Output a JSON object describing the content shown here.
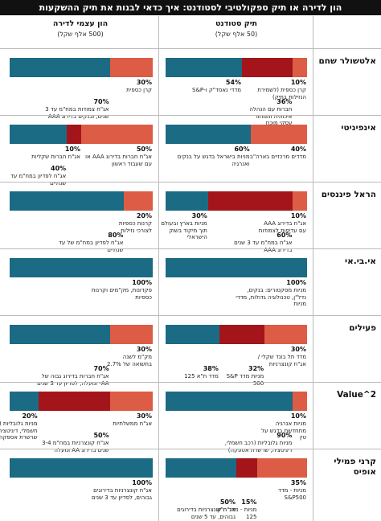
{
  "title": "הון לדירה או תיק ספקולטיבי לסטודנט: איך כדאי לבנות את תיק ההשקעות",
  "columns": {
    "student": {
      "title": "תיק סטודנט",
      "subtitle": "(50 אלף שקל)"
    },
    "home": {
      "title": "הון עצמי לדירה",
      "subtitle": "(500 אלף שקל)"
    }
  },
  "rows": [
    {
      "name": "אלטשולר שחם",
      "student": [
        {
          "value": 10,
          "value_label": "10%",
          "color": "#dd5c45",
          "text": "קרן כספית (לשמירת הנזילות בתיק)"
        },
        {
          "value": 36,
          "value_label": "36%",
          "color": "#a3151a",
          "text": "חברות עם הנהלה איכותית ותמחור עסקי מוכח"
        },
        {
          "value": 54,
          "value_label": "54%",
          "color": "#1c6b84",
          "text": "מדדי נאסד\"ק ו-S&P"
        }
      ],
      "home": [
        {
          "value": 30,
          "value_label": "30%",
          "color": "#dd5c45",
          "text": "קרן כספית"
        },
        {
          "value": 70,
          "value_label": "70%",
          "color": "#1c6b84",
          "text": "אג\"ח צמודות במח\"מ עד 3 שנים, ובנקים בדירוג AAA"
        }
      ]
    },
    {
      "name": "אינפיניטי",
      "student": [
        {
          "value": 40,
          "value_label": "40%",
          "color": "#dd5c45",
          "text": "מדדים מרכזיים בארה\"ב"
        },
        {
          "value": 60,
          "value_label": "60%",
          "color": "#1c6b84",
          "text": "מניות בישראל בדגש על בנקים ואנרגיה"
        }
      ],
      "home": [
        {
          "value": 50,
          "value_label": "50%",
          "color": "#dd5c45",
          "text": "אג\"ח חברות בדירוג AAA או עם שעבוד ראשון"
        },
        {
          "value": 10,
          "value_label": "10%",
          "color": "#a3151a",
          "text": "אג\"ח חברות שקליות"
        },
        {
          "value": 40,
          "value_label": "40%",
          "color": "#1c6b84",
          "text": "אג\"ח לפדיון במח\"מ עד שנתיים"
        }
      ]
    },
    {
      "name": "הראל פיננסים",
      "student": [
        {
          "value": 10,
          "value_label": "10%",
          "color": "#dd5c45",
          "text": "אג\"ח בדירוג AAA עם עדיפות לצמודות"
        },
        {
          "value": 60,
          "value_label": "60%",
          "color": "#a3151a",
          "text": "אג\"ח במח\"מ עד 3 שנים בדירוג AAA"
        },
        {
          "value": 30,
          "value_label": "30%",
          "color": "#1c6b84",
          "text": "מניות בארץ ובעולם תוך מיקוד בשוק הישראלי"
        }
      ],
      "home": [
        {
          "value": 20,
          "value_label": "20%",
          "color": "#dd5c45",
          "text": "קרנות כספיות לצורכי נזילות"
        },
        {
          "value": 80,
          "value_label": "80%",
          "color": "#1c6b84",
          "text": "אג\"ח לפדיון במח\"מ של עד שנתיים"
        }
      ]
    },
    {
      "name": "אי.בי.אי",
      "student": [
        {
          "value": 100,
          "value_label": "100%",
          "color": "#1c6b84",
          "text": "מניות מסקטורים: בנקים, נדל\"ן, טכנולוגיה גדולות, מדדי מניות"
        }
      ],
      "home": [
        {
          "value": 100,
          "value_label": "100%",
          "color": "#1c6b84",
          "text": "פקדונות, מק\"מים וקרנות כספיות"
        }
      ]
    },
    {
      "name": "פעילים",
      "student": [
        {
          "value": 30,
          "value_label": "30%",
          "color": "#dd5c45",
          "text": "מדד תל בונד שקלי / אג\"ח קונצרניות"
        },
        {
          "value": 32,
          "value_label": "32%",
          "color": "#a3151a",
          "text": "מניות מדד S&P 500"
        },
        {
          "value": 38,
          "value_label": "38%",
          "color": "#1c6b84",
          "text": "מדד ת\"א 125"
        }
      ],
      "home": [
        {
          "value": 30,
          "value_label": "30%",
          "color": "#dd5c45",
          "text": "מק\"מ לשנה בתשואה של 2.7%"
        },
        {
          "value": 70,
          "value_label": "70%",
          "color": "#1c6b84",
          "text": "אג\"ח חברות בדירוג גבוה של AA- ומעלה, לפדיון עד 3 שנים"
        }
      ]
    },
    {
      "name": "Value^2",
      "student": [
        {
          "value": 10,
          "value_label": "10%",
          "color": "#dd5c45",
          "text": "מניות אנרגיה מתחדשת בדגש על טין"
        },
        {
          "value": 90,
          "value_label": "90%",
          "color": "#1c6b84",
          "text": "מניות גלובליות (רכב חשמלי, דיגיטציה, שרשרת אספקה)"
        }
      ],
      "home": [
        {
          "value": 30,
          "value_label": "30%",
          "color": "#dd5c45",
          "text": "אג\"ח ממשלתיות"
        },
        {
          "value": 50,
          "value_label": "50%",
          "color": "#a3151a",
          "text": "אג\"ח קונצרניות במח\"מ 3-4 שנים בדירוג AA ומעלה"
        },
        {
          "value": 20,
          "value_label": "20%",
          "color": "#1c6b84",
          "text": "מניות גלובליות (רכב חשמלי, דיגיטציה, שרשרת אספקה)"
        }
      ]
    },
    {
      "name": "קרני פמילי אופיס",
      "student": [
        {
          "value": 35,
          "value_label": "35%",
          "color": "#dd5c45",
          "text": "מניות - מדד S&P500"
        },
        {
          "value": 15,
          "value_label": "15%",
          "color": "#a3151a",
          "text": "מניות - מדד ת\"א 125"
        },
        {
          "value": 50,
          "value_label": "50%",
          "color": "#1c6b84",
          "text": "אג\"ח קונצרניות בדירוגים גבוהים, עד 5 שנים"
        }
      ],
      "home": [
        {
          "value": 100,
          "value_label": "100%",
          "color": "#1c6b84",
          "text": "אג\"ח קונצרניות בדירוגים גבוהים, לפדיון עד 3 שנים"
        }
      ]
    }
  ]
}
